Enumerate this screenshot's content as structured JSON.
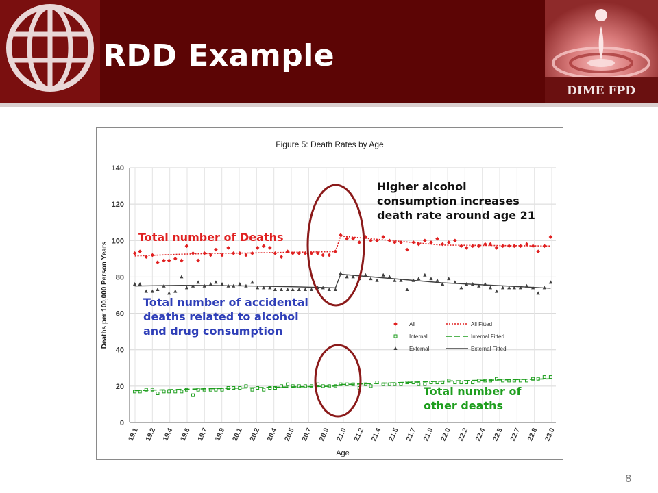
{
  "slide": {
    "title": "RDD Example",
    "page_number": "8",
    "brand_label": "DIME FPD"
  },
  "annotations": {
    "total_deaths": "Total number of Deaths",
    "accidental_deaths": "Total number of accidental deaths related to alcohol and drug consumption",
    "alcohol_note": "Higher alcohol consumption increases death rate around age 21",
    "other_deaths": "Total number of other deaths"
  },
  "colors": {
    "header": "#5c0505",
    "all": "#e02020",
    "internal": "#1e9e1e",
    "external": "#404040",
    "accidental_text": "#2f3fb8",
    "ellipse": "#8b1a1a"
  },
  "chart_data": {
    "type": "scatter",
    "title": "Figure 5: Death Rates by Age",
    "xlabel": "Age",
    "ylabel": "Deaths per 100,000 Person Years",
    "ylim": [
      0,
      140
    ],
    "yticks": [
      0,
      20,
      40,
      60,
      80,
      100,
      120,
      140
    ],
    "xlim": [
      19.0,
      23.1
    ],
    "xtick_labels": [
      "19.1",
      "19.2",
      "19.4",
      "19.6",
      "19.7",
      "19.9",
      "20.1",
      "20.2",
      "20.4",
      "20.5",
      "20.7",
      "20.9",
      "21.0",
      "21.2",
      "21.4",
      "21.5",
      "21.7",
      "21.9",
      "22.0",
      "22.2",
      "22.4",
      "22.5",
      "22.7",
      "22.8",
      "23.0"
    ],
    "grid": true,
    "legend": {
      "placement": "lower-right",
      "entries": [
        "All",
        "All Fitted",
        "Internal",
        "Internal Fitted",
        "External",
        "External Fitted"
      ]
    },
    "cutoff": 21.0,
    "x": [
      19.05,
      19.1,
      19.16,
      19.22,
      19.27,
      19.33,
      19.38,
      19.44,
      19.5,
      19.55,
      19.61,
      19.66,
      19.72,
      19.78,
      19.83,
      19.89,
      19.95,
      20.0,
      20.06,
      20.12,
      20.18,
      20.23,
      20.29,
      20.35,
      20.4,
      20.46,
      20.52,
      20.57,
      20.63,
      20.69,
      20.75,
      20.81,
      20.86,
      20.92,
      20.98,
      21.03,
      21.09,
      21.15,
      21.21,
      21.27,
      21.32,
      21.38,
      21.44,
      21.5,
      21.55,
      21.61,
      21.67,
      21.73,
      21.78,
      21.84,
      21.9,
      21.96,
      22.01,
      22.07,
      22.13,
      22.19,
      22.24,
      22.3,
      22.36,
      22.42,
      22.47,
      22.53,
      22.59,
      22.65,
      22.7,
      22.76,
      22.82,
      22.88,
      22.93,
      22.99,
      23.05
    ],
    "series": [
      {
        "name": "All",
        "values": [
          93,
          94,
          91,
          92,
          88,
          89,
          89,
          90,
          89,
          97,
          93,
          89,
          93,
          92,
          95,
          92,
          96,
          93,
          93,
          92,
          93,
          96,
          97,
          96,
          93,
          91,
          94,
          93,
          93,
          93,
          93,
          93,
          92,
          92,
          94,
          103,
          101,
          101,
          99,
          102,
          100,
          100,
          102,
          100,
          99,
          99,
          95,
          99,
          98,
          100,
          99,
          101,
          98,
          99,
          100,
          97,
          96,
          97,
          97,
          98,
          98,
          96,
          97,
          97,
          97,
          97,
          98,
          97,
          94,
          97,
          102
        ]
      },
      {
        "name": "All Fitted",
        "values": [
          91.5,
          92.5,
          92.9,
          93.2,
          93.6,
          93.9,
          102.5,
          97.5,
          97.0
        ]
      },
      {
        "name": "Internal",
        "values": [
          17,
          17,
          18,
          18,
          16,
          17,
          17,
          17,
          17,
          18,
          15,
          18,
          18,
          18,
          18,
          18,
          19,
          19,
          19,
          20,
          18,
          19,
          18,
          19,
          19,
          20,
          21,
          20,
          20,
          20,
          20,
          21,
          20,
          20,
          20,
          21,
          21,
          21,
          19,
          21,
          20,
          22,
          21,
          21,
          21,
          21,
          22,
          22,
          21,
          21,
          22,
          22,
          22,
          23,
          22,
          22,
          22,
          22,
          23,
          23,
          23,
          24,
          23,
          23,
          23,
          23,
          23,
          24,
          24,
          25,
          25
        ]
      },
      {
        "name": "Internal Fitted",
        "values": [
          17.5,
          18.2,
          18.6,
          19.1,
          19.6,
          20.0,
          20.8,
          22.7,
          24.0
        ]
      },
      {
        "name": "External",
        "values": [
          76,
          76,
          72,
          72,
          73,
          75,
          71,
          72,
          80,
          74,
          75,
          77,
          75,
          76,
          77,
          76,
          75,
          75,
          76,
          75,
          77,
          74,
          74,
          74,
          73,
          73,
          73,
          73,
          73,
          73,
          73,
          74,
          74,
          73,
          73,
          82,
          80,
          80,
          79,
          81,
          79,
          78,
          81,
          80,
          78,
          78,
          73,
          78,
          79,
          81,
          79,
          78,
          76,
          79,
          77,
          74,
          76,
          76,
          75,
          76,
          74,
          72,
          74,
          74,
          74,
          74,
          75,
          74,
          71,
          74,
          77
        ]
      },
      {
        "name": "External Fitted",
        "values": [
          75.0,
          75.4,
          75.3,
          75.0,
          74.6,
          74.0,
          81.5,
          76.8,
          73.8
        ]
      }
    ],
    "fitted_x": [
      19.05,
      19.5,
      19.8,
      20.2,
      20.6,
      20.98,
      21.03,
      22.0,
      23.05
    ]
  }
}
